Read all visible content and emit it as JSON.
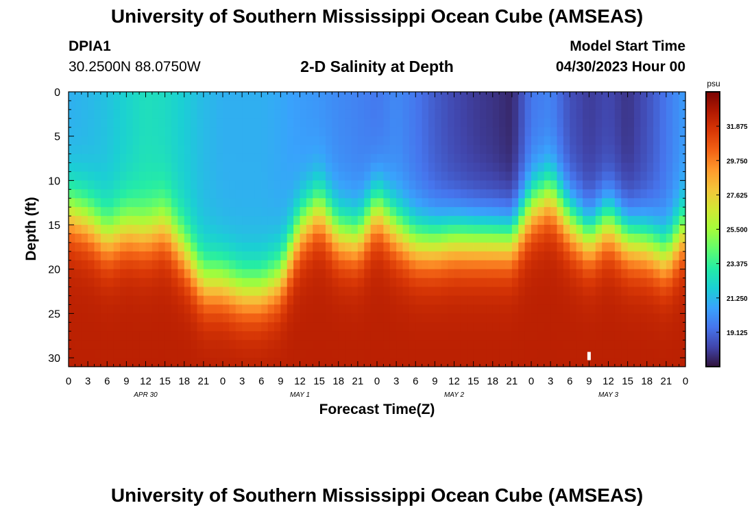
{
  "header": {
    "title": "University of Southern Mississippi Ocean Cube (AMSEAS)",
    "station_id": "DPIA1",
    "coordinates": "30.2500N  88.0750W",
    "model_start_label": "Model Start Time",
    "model_start_value": "04/30/2023 Hour 00"
  },
  "footer": {
    "title": "University of Southern Mississippi Ocean Cube (AMSEAS)"
  },
  "colors": {
    "colormap": [
      "#30123b",
      "#4145ab",
      "#4675ed",
      "#39a2fc",
      "#1bcfd4",
      "#24eca6",
      "#61fc6c",
      "#a4fc3b",
      "#d1e834",
      "#f3c63a",
      "#fe9b2d",
      "#f36315",
      "#d93806",
      "#b11901",
      "#7a0403"
    ]
  },
  "chart_data": {
    "type": "heatmap",
    "title": "2-D Salinity at Depth",
    "xlabel": "Forecast Time(Z)",
    "ylabel": "Depth (ft)",
    "x_tick_labels": [
      "0",
      "3",
      "6",
      "9",
      "12",
      "15",
      "18",
      "21",
      "0",
      "3",
      "6",
      "9",
      "12",
      "15",
      "18",
      "21",
      "0",
      "3",
      "6",
      "9",
      "12",
      "15",
      "18",
      "21",
      "0",
      "3",
      "6",
      "9",
      "12",
      "15",
      "18",
      "21",
      "0"
    ],
    "date_labels": [
      {
        "label": "APR 30",
        "hour": 12
      },
      {
        "label": "MAY 1",
        "hour": 36
      },
      {
        "label": "MAY 2",
        "hour": 60
      },
      {
        "label": "MAY 3",
        "hour": 84
      }
    ],
    "xlim": [
      0,
      96
    ],
    "y_tick_labels": [
      "0",
      "5",
      "10",
      "15",
      "20",
      "25",
      "30"
    ],
    "y_tick_values": [
      0,
      5,
      10,
      15,
      20,
      25,
      30
    ],
    "ylim": [
      0,
      31
    ],
    "colorbar": {
      "unit": "psu",
      "range": [
        17.0,
        34.0
      ],
      "tick_labels": [
        "31.875",
        "29.750",
        "27.625",
        "25.500",
        "23.375",
        "21.250",
        "19.125"
      ],
      "tick_values": [
        31.875,
        29.75,
        27.625,
        25.5,
        23.375,
        21.25,
        19.125
      ]
    },
    "halocline": {
      "description": "Depth (ft) of the 25.5 psu isohaline vs forecast hour",
      "hours": [
        0,
        3,
        6,
        9,
        12,
        15,
        18,
        21,
        24,
        27,
        30,
        33,
        36,
        39,
        42,
        45,
        48,
        51,
        54,
        57,
        60,
        63,
        66,
        69,
        72,
        75,
        78,
        81,
        84,
        87,
        90,
        93,
        96
      ],
      "depth_ft": [
        13.5,
        14.5,
        16.5,
        15.5,
        16.0,
        15.0,
        18.0,
        21.5,
        21.5,
        22.5,
        22.5,
        21.0,
        15.5,
        13.0,
        16.0,
        16.5,
        13.0,
        15.5,
        17.0,
        17.0,
        16.5,
        16.5,
        16.5,
        16.5,
        13.0,
        11.5,
        14.5,
        16.5,
        14.5,
        16.5,
        17.0,
        18.5,
        15.5
      ]
    },
    "surface_salinity": {
      "description": "Approximate surface (0 ft) salinity in psu vs forecast hour",
      "hours": [
        0,
        3,
        6,
        9,
        12,
        15,
        18,
        21,
        24,
        27,
        30,
        33,
        36,
        39,
        42,
        45,
        48,
        51,
        54,
        57,
        60,
        63,
        66,
        69,
        72,
        75,
        78,
        81,
        84,
        87,
        90,
        93,
        96
      ],
      "psu": [
        21.0,
        21.2,
        21.5,
        22.0,
        22.5,
        22.3,
        21.8,
        21.3,
        21.0,
        21.0,
        21.0,
        20.8,
        20.5,
        20.3,
        20.0,
        19.8,
        19.5,
        20.0,
        19.5,
        18.8,
        18.3,
        18.0,
        17.8,
        17.5,
        19.5,
        19.8,
        18.5,
        18.0,
        18.3,
        17.8,
        18.5,
        19.5,
        20.5
      ]
    },
    "bottom_salinity": 32.5,
    "marker": {
      "hour": 81,
      "depth_ft": 29.8
    }
  }
}
